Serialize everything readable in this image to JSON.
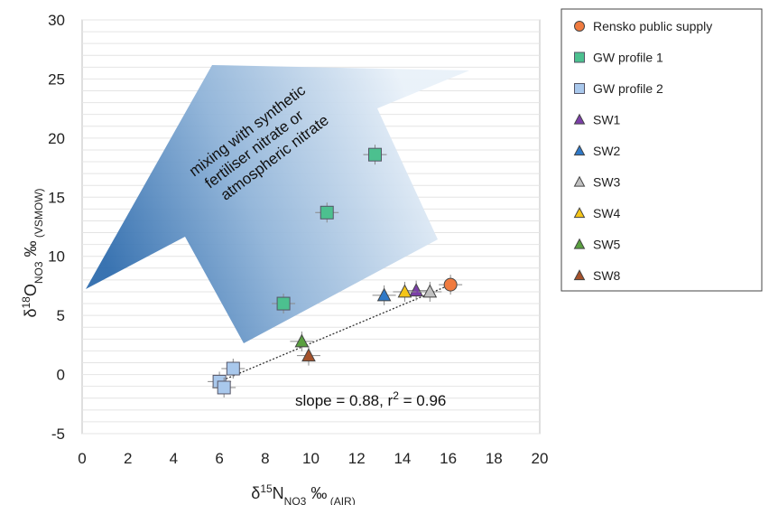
{
  "chart_data": {
    "type": "scatter",
    "x_axis": {
      "label_main": "δ",
      "label_sup": "15",
      "label_mid": "N",
      "label_sub": "NO3",
      "label_unit": " ‰",
      "label_ref": " (AIR)",
      "range": [
        0,
        20
      ],
      "ticks": [
        "0",
        "2",
        "4",
        "6",
        "8",
        "10",
        "12",
        "14",
        "16",
        "18",
        "20"
      ]
    },
    "y_axis": {
      "label_main": "δ",
      "label_sup": "18",
      "label_mid": "O",
      "label_sub": "NO3",
      "label_unit": " ‰",
      "label_ref": " (VSMOW)",
      "range": [
        -5,
        30
      ],
      "ticks": [
        "-5",
        "0",
        "5",
        "10",
        "15",
        "20",
        "25",
        "30"
      ]
    },
    "grid": "horizontal",
    "legend_position": "right",
    "series": [
      {
        "name": "Rensko public supply",
        "marker": "circle",
        "color": "#f07b3f",
        "points": [
          {
            "x": 16.1,
            "y": 7.6
          }
        ]
      },
      {
        "name": "GW profile 1",
        "marker": "square",
        "color": "#4cc08f",
        "points": [
          {
            "x": 12.8,
            "y": 18.6
          },
          {
            "x": 10.7,
            "y": 13.7
          },
          {
            "x": 8.8,
            "y": 6.0
          }
        ]
      },
      {
        "name": "GW profile 2",
        "marker": "square",
        "color": "#a9c8ec",
        "points": [
          {
            "x": 6.6,
            "y": 0.5
          },
          {
            "x": 6.0,
            "y": -0.6
          },
          {
            "x": 6.2,
            "y": -1.1
          }
        ]
      },
      {
        "name": "SW1",
        "marker": "triangle",
        "color": "#7b3fa8",
        "points": [
          {
            "x": 14.6,
            "y": 7.1
          }
        ]
      },
      {
        "name": "SW2",
        "marker": "triangle",
        "color": "#2e78c7",
        "points": [
          {
            "x": 13.2,
            "y": 6.7
          }
        ]
      },
      {
        "name": "SW3",
        "marker": "triangle",
        "color": "#c0c0c0",
        "points": [
          {
            "x": 15.2,
            "y": 7.0
          }
        ]
      },
      {
        "name": "SW4",
        "marker": "triangle",
        "color": "#f5c518",
        "points": [
          {
            "x": 14.1,
            "y": 7.0
          }
        ]
      },
      {
        "name": "SW5",
        "marker": "triangle",
        "color": "#5aa040",
        "points": [
          {
            "x": 9.6,
            "y": 2.8
          }
        ]
      },
      {
        "name": "SW8",
        "marker": "triangle",
        "color": "#a5512a",
        "points": [
          {
            "x": 9.9,
            "y": 1.6
          }
        ]
      }
    ],
    "regression_line": {
      "x": [
        6.0,
        16.1
      ],
      "y": [
        -0.6,
        7.6
      ]
    },
    "annotations": {
      "fit_text_pre": "slope = 0.88, r",
      "fit_text_sup": "2",
      "fit_text_post": " = 0.96",
      "arrow_label": [
        "mixing with synthetic",
        "fertiliser nitrate or",
        "atmospheric nitrate"
      ]
    }
  }
}
